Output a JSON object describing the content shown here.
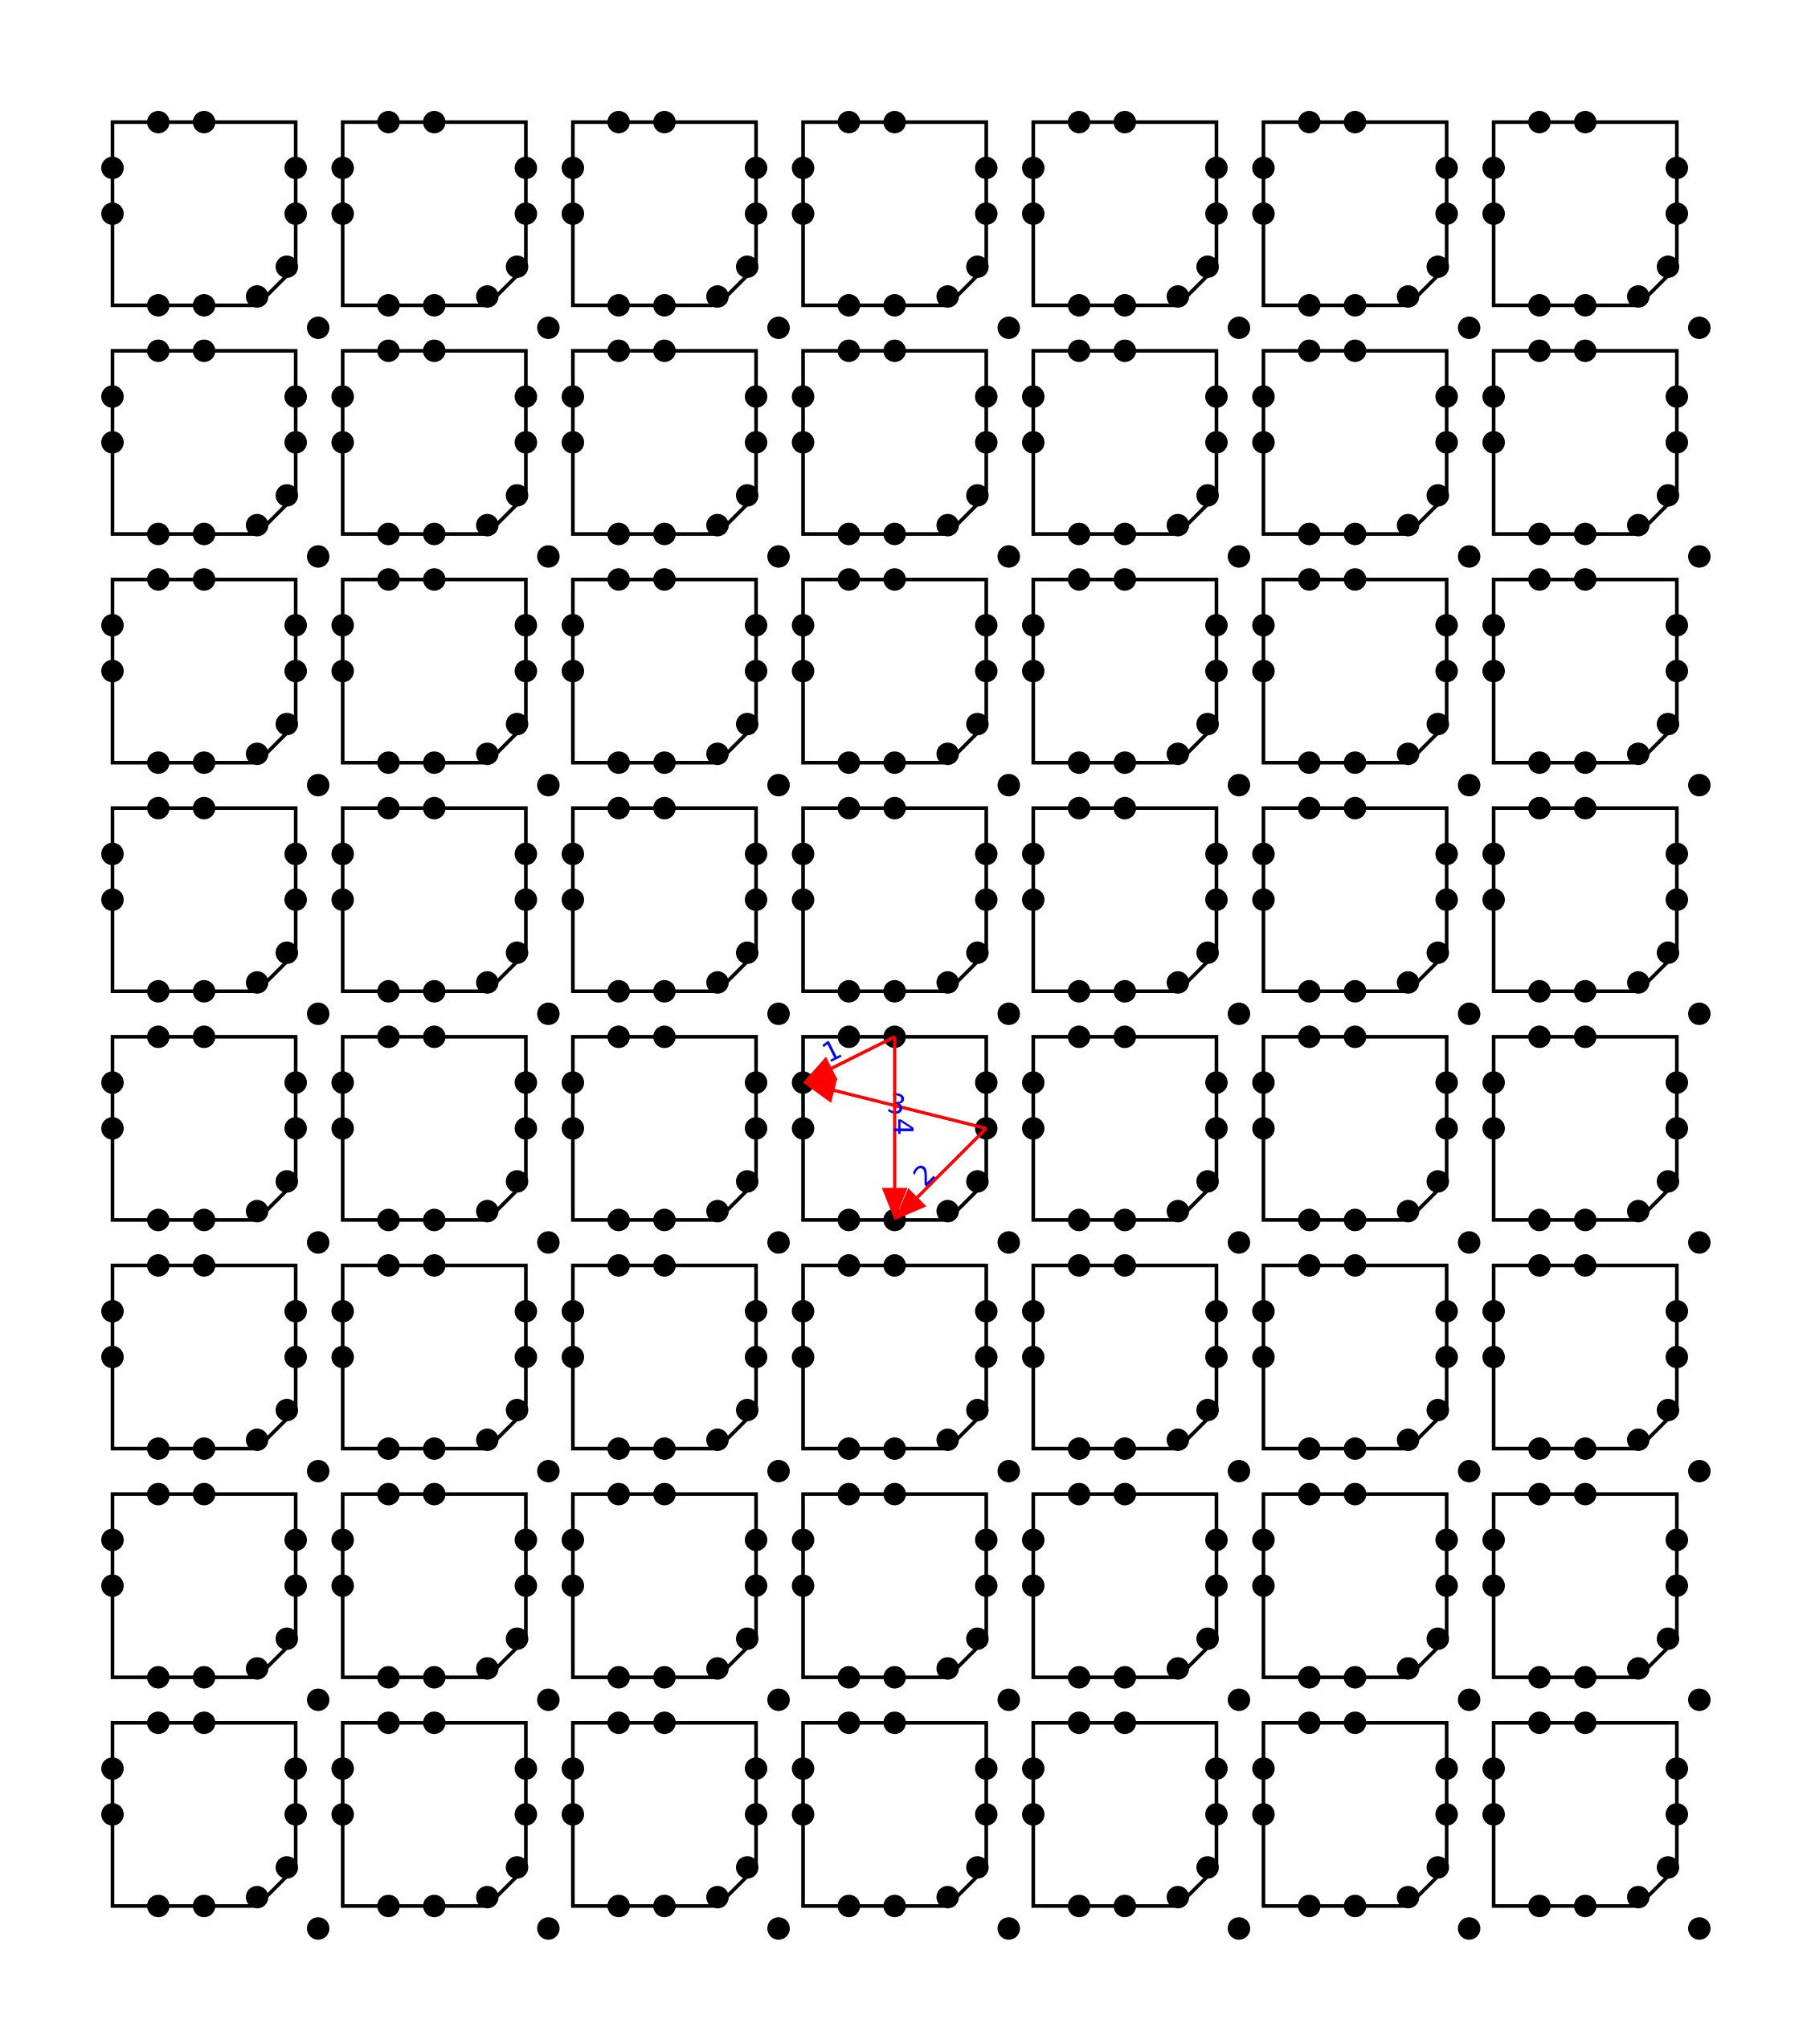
{
  "grid": {
    "rows": 8,
    "cols": 7
  },
  "colors": {
    "background": "#ffffff",
    "cell_outline": "#000000",
    "node": "#000000",
    "arrow": "#ff0000",
    "arrow_label": "#0000ff"
  },
  "highlighted_cell": {
    "row": 4,
    "col": 3
  },
  "arrows": [
    {
      "from": "top-right-node",
      "to": "left-upper-node",
      "label": "1"
    },
    {
      "from": "right-lower-node",
      "to": "bottom-right-node",
      "label": "2"
    },
    {
      "from": "right-lower-node",
      "to": "left-upper-node",
      "label": "3"
    },
    {
      "from": "top-right-node",
      "to": "bottom-right-node",
      "label": "4"
    }
  ]
}
